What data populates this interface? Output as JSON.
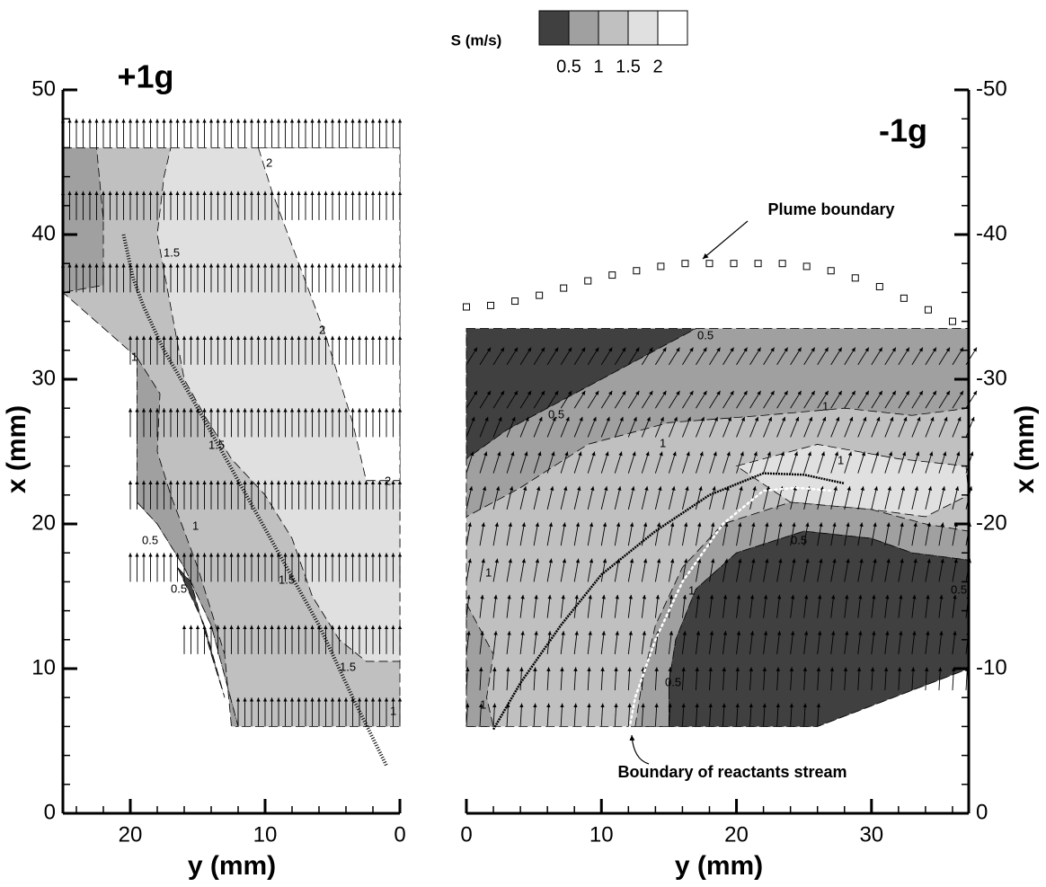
{
  "colorbar": {
    "title": "S (m/s)",
    "levels": [
      0.5,
      1,
      1.5,
      2
    ],
    "colors": [
      "#404040",
      "#a0a0a0",
      "#c0c0c0",
      "#e0e0e0",
      "#ffffff"
    ]
  },
  "chart_data": [
    {
      "type": "contour",
      "title": "+1g",
      "x_label": "y (mm)",
      "y_label": "x (mm)",
      "xlim": [
        25,
        0
      ],
      "ylim": [
        0,
        50
      ],
      "xticks": [
        20,
        10,
        0
      ],
      "yticks": [
        0,
        10,
        20,
        30,
        40,
        50
      ],
      "regions": [
        {
          "level": 2,
          "points": [
            [
              25,
              46
            ],
            [
              0,
              46
            ],
            [
              0,
              6
            ],
            [
              12,
              6
            ],
            [
              14,
              13
            ],
            [
              16,
              17
            ],
            [
              18,
              20
            ],
            [
              19.5,
              21.5
            ],
            [
              19.5,
              31.5
            ],
            [
              25,
              36
            ]
          ]
        },
        {
          "level": 1,
          "points": [
            [
              25,
              46
            ],
            [
              22.5,
              46
            ],
            [
              22,
              41
            ],
            [
              22,
              36.5
            ],
            [
              25,
              36
            ]
          ]
        },
        {
          "level": 1,
          "points": [
            [
              19.5,
              31.5
            ],
            [
              17.8,
              29
            ],
            [
              18,
              25
            ],
            [
              17,
              22
            ],
            [
              15,
              17
            ],
            [
              13,
              11
            ],
            [
              12.5,
              6
            ],
            [
              12,
              6
            ],
            [
              14,
              13
            ],
            [
              16,
              17
            ],
            [
              18,
              20
            ],
            [
              19.5,
              21.5
            ]
          ]
        },
        {
          "level": 3,
          "points": [
            [
              17,
              46
            ],
            [
              0,
              46
            ],
            [
              0,
              10.5
            ],
            [
              2.5,
              10.5
            ],
            [
              4.5,
              12
            ],
            [
              6.5,
              15
            ],
            [
              8,
              19
            ],
            [
              10,
              22
            ],
            [
              12.5,
              24.5
            ],
            [
              14.5,
              27.5
            ],
            [
              16,
              30
            ],
            [
              17,
              35
            ],
            [
              18,
              40
            ],
            [
              17.5,
              44
            ]
          ]
        },
        {
          "level": 4,
          "points": [
            [
              10.5,
              46
            ],
            [
              0,
              46
            ],
            [
              0,
              23
            ],
            [
              2.5,
              23
            ],
            [
              3.5,
              27
            ],
            [
              5.5,
              33
            ],
            [
              7.5,
              38
            ],
            [
              9.5,
              43
            ]
          ]
        },
        {
          "level": 0,
          "points": [
            [
              16.5,
              17
            ],
            [
              14.5,
              13
            ],
            [
              13,
              8
            ],
            [
              14,
              11
            ],
            [
              15.5,
              16
            ]
          ]
        }
      ],
      "vectors": [
        {
          "x": 46,
          "y": [
            25,
            0
          ],
          "u": 0,
          "v": 2
        },
        {
          "x": 41,
          "y": [
            25,
            0
          ],
          "u": 0,
          "v": 2
        },
        {
          "x": 36,
          "y": [
            25,
            0
          ],
          "u": 0,
          "v": 2
        },
        {
          "x": 31,
          "y": [
            20,
            0
          ],
          "u": 0,
          "v": 2
        },
        {
          "x": 26,
          "y": [
            20,
            0
          ],
          "u": 0,
          "v": 2
        },
        {
          "x": 21,
          "y": [
            20,
            0
          ],
          "u": 0,
          "v": 2
        },
        {
          "x": 16,
          "y": [
            20,
            0
          ],
          "u": 0,
          "v": 2
        },
        {
          "x": 11,
          "y": [
            16.3,
            0
          ],
          "u": 0,
          "v": 2
        },
        {
          "x": 6,
          "y": [
            12.3,
            0
          ],
          "u": 0,
          "v": 2
        }
      ],
      "series": [
        {
          "color": "#000000",
          "x": [
            20.5,
            19.8,
            19,
            17.5,
            15,
            12,
            9,
            6,
            3.5,
            1
          ],
          "y": [
            40,
            37,
            35,
            32,
            28,
            23,
            18,
            13,
            8,
            3.3
          ]
        }
      ],
      "contour_labels": [
        "2",
        "1.5",
        "2",
        "1",
        "1.5",
        "2",
        "1",
        "0.5",
        "0.5",
        "1.5",
        "1.5",
        "1"
      ]
    },
    {
      "type": "contour",
      "title": "-1g",
      "x_label": "y (mm)",
      "y_label": "x (mm)",
      "xlim": [
        0,
        37.2
      ],
      "ylim": [
        0,
        -50
      ],
      "xticks": [
        0,
        10,
        20,
        30
      ],
      "yticks": [
        0,
        -10,
        -20,
        -30,
        -40,
        -50
      ],
      "regions": [
        {
          "level": 2,
          "points": [
            [
              0,
              -33.5
            ],
            [
              37.2,
              -33.5
            ],
            [
              37.2,
              -10
            ],
            [
              26,
              -6
            ],
            [
              0,
              -6
            ]
          ]
        },
        {
          "level": 0,
          "points": [
            [
              0,
              -33.5
            ],
            [
              17,
              -33.5
            ],
            [
              14,
              -32
            ],
            [
              11,
              -30.5
            ],
            [
              7,
              -28.5
            ],
            [
              3,
              -26.5
            ],
            [
              0,
              -24.5
            ]
          ]
        },
        {
          "level": 1,
          "points": [
            [
              17,
              -33.5
            ],
            [
              37.2,
              -33.5
            ],
            [
              37.2,
              -28
            ],
            [
              33,
              -27.5
            ],
            [
              28,
              -28
            ],
            [
              22,
              -27.5
            ],
            [
              15,
              -27
            ],
            [
              9,
              -25.5
            ],
            [
              4,
              -22.5
            ],
            [
              0,
              -20.5
            ],
            [
              0,
              -24.5
            ],
            [
              3,
              -26.5
            ],
            [
              7,
              -28.5
            ],
            [
              11,
              -30.5
            ],
            [
              14,
              -32
            ]
          ]
        },
        {
          "level": 3,
          "points": [
            [
              20,
              -24
            ],
            [
              26,
              -25.5
            ],
            [
              32,
              -24.5
            ],
            [
              37,
              -24
            ],
            [
              37.2,
              -22
            ],
            [
              34,
              -20.5
            ],
            [
              30,
              -21
            ],
            [
              24,
              -21.5
            ]
          ]
        },
        {
          "level": 1,
          "points": [
            [
              12.5,
              -6
            ],
            [
              13,
              -9
            ],
            [
              14,
              -13
            ],
            [
              16,
              -17
            ],
            [
              19,
              -20
            ],
            [
              24,
              -21.5
            ],
            [
              30,
              -21
            ],
            [
              34,
              -20
            ],
            [
              37.2,
              -19.5
            ],
            [
              37.2,
              -17.5
            ],
            [
              33,
              -18
            ],
            [
              30,
              -19
            ],
            [
              25,
              -19.5
            ],
            [
              20,
              -18
            ],
            [
              17,
              -15.5
            ],
            [
              15.5,
              -12
            ],
            [
              15,
              -9
            ],
            [
              15,
              -6
            ]
          ]
        },
        {
          "level": 0,
          "points": [
            [
              15,
              -6
            ],
            [
              15,
              -9
            ],
            [
              15.5,
              -12
            ],
            [
              17,
              -15.5
            ],
            [
              20,
              -18
            ],
            [
              25,
              -19.5
            ],
            [
              30,
              -19
            ],
            [
              33,
              -18
            ],
            [
              37.2,
              -17.5
            ],
            [
              37.2,
              -10
            ],
            [
              26,
              -6
            ]
          ]
        },
        {
          "level": 1,
          "points": [
            [
              0,
              -14.5
            ],
            [
              2,
              -11
            ],
            [
              1.5,
              -8
            ],
            [
              2,
              -6
            ],
            [
              0,
              -6
            ]
          ]
        }
      ],
      "vectors": [
        {
          "x": -31,
          "y": [
            0,
            37
          ],
          "u": 0.8,
          "v": -1.2
        },
        {
          "x": -28,
          "y": [
            0,
            37
          ],
          "u": 0.8,
          "v": -1.2
        },
        {
          "x": -26,
          "y": [
            0,
            37
          ],
          "u": 0.6,
          "v": -1.4
        },
        {
          "x": -23.5,
          "y": [
            0,
            37
          ],
          "u": 0.5,
          "v": -1.5
        },
        {
          "x": -21,
          "y": [
            0,
            37
          ],
          "u": 0.4,
          "v": -1.6
        },
        {
          "x": -18.5,
          "y": [
            0,
            37
          ],
          "u": 0.3,
          "v": -1.6
        },
        {
          "x": -16,
          "y": [
            0,
            37
          ],
          "u": 0.3,
          "v": -1.6
        },
        {
          "x": -13.5,
          "y": [
            0,
            37
          ],
          "u": 0.2,
          "v": -1.6
        },
        {
          "x": -11,
          "y": [
            0,
            37
          ],
          "u": 0.2,
          "v": -1.6
        },
        {
          "x": -8.5,
          "y": [
            0,
            37
          ],
          "u": 0.1,
          "v": -1.6
        },
        {
          "x": -6,
          "y": [
            0,
            26
          ],
          "u": 0.1,
          "v": -1.6
        }
      ],
      "series": [
        {
          "color": "#000000",
          "x": [
            2,
            4,
            7,
            10,
            14,
            18,
            22,
            25,
            28
          ],
          "y": [
            -5.8,
            -9,
            -13,
            -16.5,
            -19.5,
            -22,
            -23.5,
            -23.4,
            -22.8
          ]
        },
        {
          "color": "#ffffff",
          "marker": "dot",
          "x": [
            12,
            12.5,
            14,
            16,
            19,
            22,
            24.5,
            27
          ],
          "y": [
            -5.5,
            -8,
            -12,
            -16,
            -20,
            -22.3,
            -22.5,
            -22.3
          ]
        },
        {
          "color": "#000000",
          "marker": "square",
          "x": [
            0,
            1.8,
            3.6,
            5.4,
            7.2,
            9,
            10.8,
            12.6,
            14.4,
            16.2,
            18,
            19.8,
            21.6,
            23.4,
            25.2,
            27,
            28.8,
            30.6,
            32.4,
            34.2,
            36
          ],
          "y": [
            -35,
            -35.1,
            -35.4,
            -35.8,
            -36.3,
            -36.8,
            -37.2,
            -37.5,
            -37.8,
            -38,
            -38,
            -38,
            -38,
            -38,
            -37.8,
            -37.5,
            -37,
            -36.4,
            -35.6,
            -34.8,
            -34
          ]
        }
      ],
      "contour_labels": [
        "0.5",
        "0.5",
        "1",
        "1",
        "1",
        "1",
        "0.5",
        "1",
        "0.5",
        "0.5",
        "1"
      ],
      "annotations": [
        "Plume boundary",
        "Boundary of reactants stream"
      ]
    }
  ]
}
